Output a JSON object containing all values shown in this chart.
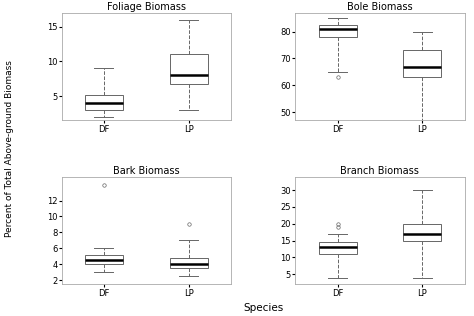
{
  "titles": [
    "Foliage Biomass",
    "Bole Biomass",
    "Bark Biomass",
    "Branch Biomass"
  ],
  "categories": [
    "DF",
    "LP"
  ],
  "ylabel": "Percent of Total Above-ground Biomass",
  "xlabel": "Species",
  "plots": [
    {
      "title": "Foliage Biomass",
      "ylim": [
        1.5,
        17
      ],
      "yticks": [
        5,
        10,
        15
      ],
      "boxes": [
        {
          "whislo": 2.0,
          "q1": 3.0,
          "med": 4.0,
          "q3": 5.2,
          "whishi": 9.0,
          "fliers": []
        },
        {
          "whislo": 3.0,
          "q1": 6.8,
          "med": 8.0,
          "q3": 11.0,
          "whishi": 16.0,
          "fliers": []
        }
      ]
    },
    {
      "title": "Bole Biomass",
      "ylim": [
        47,
        87
      ],
      "yticks": [
        50,
        60,
        70,
        80
      ],
      "boxes": [
        {
          "whislo": 65.0,
          "q1": 78.0,
          "med": 81.0,
          "q3": 82.5,
          "whishi": 85.0,
          "fliers": [
            63.0
          ]
        },
        {
          "whislo": 46.0,
          "q1": 63.0,
          "med": 67.0,
          "q3": 73.0,
          "whishi": 80.0,
          "fliers": []
        }
      ]
    },
    {
      "title": "Bark Biomass",
      "ylim": [
        1.5,
        15
      ],
      "yticks": [
        2,
        4,
        6,
        8,
        10,
        12
      ],
      "boxes": [
        {
          "whislo": 3.0,
          "q1": 4.0,
          "med": 4.5,
          "q3": 5.2,
          "whishi": 6.0,
          "fliers": [
            14.0
          ]
        },
        {
          "whislo": 2.5,
          "q1": 3.5,
          "med": 4.0,
          "q3": 4.8,
          "whishi": 7.0,
          "fliers": [
            9.0
          ]
        }
      ]
    },
    {
      "title": "Branch Biomass",
      "ylim": [
        2,
        34
      ],
      "yticks": [
        5,
        10,
        15,
        20,
        25,
        30
      ],
      "boxes": [
        {
          "whislo": 4.0,
          "q1": 11.0,
          "med": 13.0,
          "q3": 14.5,
          "whishi": 17.0,
          "fliers": [
            19.0,
            20.0
          ]
        },
        {
          "whislo": 4.0,
          "q1": 15.0,
          "med": 17.0,
          "q3": 20.0,
          "whishi": 30.0,
          "fliers": []
        }
      ]
    }
  ],
  "background_color": "#ffffff",
  "box_color": "#ffffff",
  "median_color": "#000000",
  "whisker_color": "#666666",
  "flier_color": "#666666",
  "box_edge_color": "#666666",
  "title_fontsize": 7,
  "tick_fontsize": 6,
  "ylabel_fontsize": 6.5,
  "xlabel_fontsize": 7.5
}
